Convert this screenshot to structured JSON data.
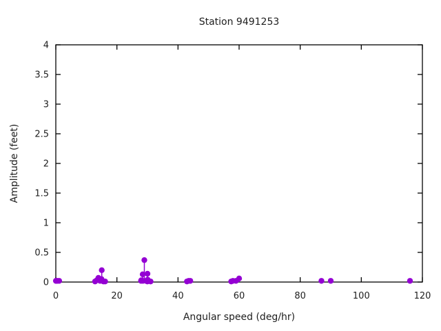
{
  "figure": {
    "background": "#ffffff",
    "text_color": "#202020",
    "axis_color": "#000000"
  },
  "chart_data": {
    "type": "scatter",
    "style": "impulses-with-points",
    "title": "Station 9491253",
    "xlabel": "Angular speed (deg/hr)",
    "ylabel": "Amplitude (feet)",
    "xlim": [
      0,
      120
    ],
    "ylim": [
      0,
      4
    ],
    "xticks": [
      0,
      20,
      40,
      60,
      80,
      100,
      120
    ],
    "yticks": [
      0,
      0.5,
      1,
      1.5,
      2,
      2.5,
      3,
      3.5,
      4
    ],
    "grid": false,
    "legend_position": "none",
    "point_color": "#9400d3",
    "points": [
      {
        "x": 0.04,
        "y": 0.02
      },
      {
        "x": 0.08,
        "y": 0.02
      },
      {
        "x": 0.54,
        "y": 0.02
      },
      {
        "x": 1.1,
        "y": 0.02
      },
      {
        "x": 12.85,
        "y": 0.01
      },
      {
        "x": 13.4,
        "y": 0.03
      },
      {
        "x": 13.94,
        "y": 0.07
      },
      {
        "x": 14.49,
        "y": 0.02
      },
      {
        "x": 14.96,
        "y": 0.05
      },
      {
        "x": 15.04,
        "y": 0.2
      },
      {
        "x": 15.59,
        "y": 0.01
      },
      {
        "x": 16.14,
        "y": 0.01
      },
      {
        "x": 27.9,
        "y": 0.02
      },
      {
        "x": 27.97,
        "y": 0.03
      },
      {
        "x": 28.44,
        "y": 0.13
      },
      {
        "x": 28.51,
        "y": 0.02
      },
      {
        "x": 28.98,
        "y": 0.37
      },
      {
        "x": 29.53,
        "y": 0.02
      },
      {
        "x": 29.96,
        "y": 0.01
      },
      {
        "x": 30.0,
        "y": 0.14
      },
      {
        "x": 30.08,
        "y": 0.04
      },
      {
        "x": 31.02,
        "y": 0.01
      },
      {
        "x": 42.93,
        "y": 0.01
      },
      {
        "x": 43.48,
        "y": 0.02
      },
      {
        "x": 44.03,
        "y": 0.02
      },
      {
        "x": 57.42,
        "y": 0.01
      },
      {
        "x": 57.97,
        "y": 0.02
      },
      {
        "x": 58.98,
        "y": 0.02
      },
      {
        "x": 60.0,
        "y": 0.06
      },
      {
        "x": 86.95,
        "y": 0.02
      },
      {
        "x": 90.0,
        "y": 0.02
      },
      {
        "x": 115.94,
        "y": 0.02
      }
    ]
  }
}
